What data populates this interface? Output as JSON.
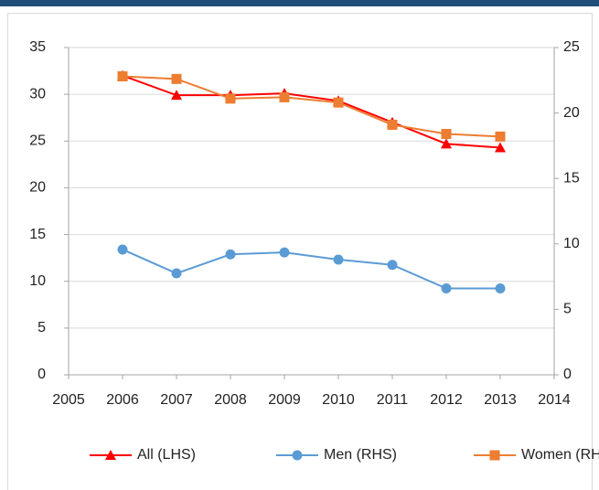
{
  "chart_data": {
    "type": "line",
    "x": [
      2006,
      2007,
      2008,
      2009,
      2010,
      2011,
      2012,
      2013
    ],
    "xlim": [
      2005,
      2014
    ],
    "xticks": [
      2005,
      2006,
      2007,
      2008,
      2009,
      2010,
      2011,
      2012,
      2013,
      2014
    ],
    "ylim": [
      0,
      35
    ],
    "yticks": [
      0,
      5,
      10,
      15,
      20,
      25,
      30,
      35
    ],
    "y2lim": [
      0,
      25
    ],
    "y2ticks": [
      0,
      5,
      10,
      15,
      20,
      25
    ],
    "grid": true,
    "legend": "bottom",
    "series": [
      {
        "name": "All (LHS)",
        "color": "#ff0000",
        "marker": "triangle",
        "values": [
          32.0,
          29.9,
          29.9,
          30.1,
          29.3,
          27.0,
          24.7,
          24.3
        ]
      },
      {
        "name": "Men (RHS)",
        "color": "#5b9bd5",
        "marker": "circle",
        "axis": "y2",
        "values": [
          9.57,
          7.75,
          9.2,
          9.35,
          8.8,
          8.4,
          6.6,
          6.6
        ]
      },
      {
        "name": "Women (RHS)",
        "color": "#ed7d31",
        "marker": "square",
        "axis": "y2",
        "values": [
          22.8,
          22.6,
          21.1,
          21.2,
          20.8,
          19.1,
          18.4,
          18.2
        ]
      }
    ]
  }
}
